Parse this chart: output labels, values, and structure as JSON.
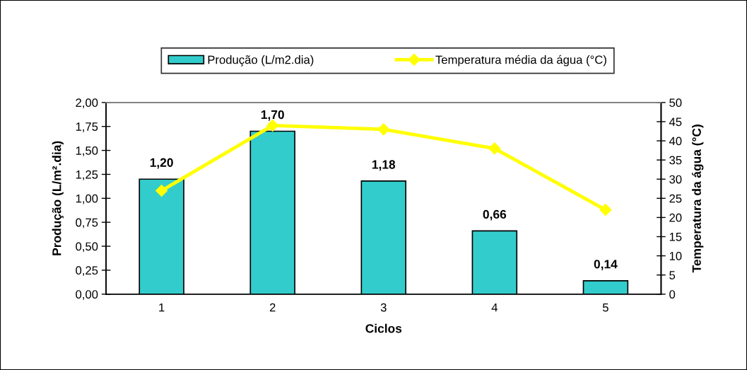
{
  "chart_data": {
    "type": "bar",
    "xlabel": "Ciclos",
    "ylabel": "Produção (L/m².dia)",
    "y2label": "Temperatura da água (°C)",
    "categories": [
      "1",
      "2",
      "3",
      "4",
      "5"
    ],
    "series": [
      {
        "name": "Produção (L/m2.dia)",
        "color": "#33cccc",
        "values": [
          1.2,
          1.7,
          1.18,
          0.66,
          0.14
        ],
        "value_labels": [
          "1,20",
          "1,70",
          "1,18",
          "0,66",
          "0,14"
        ]
      },
      {
        "name": "Temperatura média da água (°C)",
        "type": "line",
        "axis": "y2",
        "color": "#ffff00",
        "marker": "diamond",
        "line_style": "solid",
        "values": [
          27,
          44,
          43,
          38,
          22
        ]
      }
    ],
    "ylim": [
      0,
      2
    ],
    "yticks": [
      {
        "value": 0,
        "label": "0,00"
      },
      {
        "value": 0.25,
        "label": "0,25"
      },
      {
        "value": 0.5,
        "label": "0,50"
      },
      {
        "value": 0.75,
        "label": "0,75"
      },
      {
        "value": 1,
        "label": "1,00"
      },
      {
        "value": 1.25,
        "label": "1,25"
      },
      {
        "value": 1.5,
        "label": "1,50"
      },
      {
        "value": 1.75,
        "label": "1,75"
      },
      {
        "value": 2,
        "label": "2,00"
      }
    ],
    "y2lim": [
      0,
      50
    ],
    "y2ticks": [
      0,
      5,
      10,
      15,
      20,
      25,
      30,
      35,
      40,
      45,
      50
    ],
    "legend": "top"
  }
}
